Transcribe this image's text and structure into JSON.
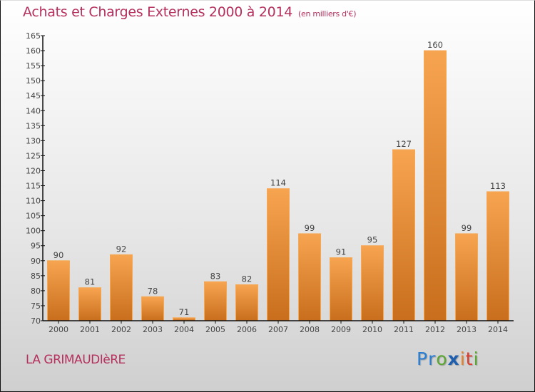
{
  "title": {
    "main": "Achats et Charges Externes 2000 à 2014",
    "unit": "(en milliers d'€)"
  },
  "city": "LA GRIMAUDIèRE",
  "logo": {
    "letters": [
      {
        "char": "P",
        "color": "#2a7fd4"
      },
      {
        "char": "r",
        "color": "#2a7fd4"
      },
      {
        "char": "o",
        "color": "#5aa832"
      },
      {
        "char": "x",
        "color": "#1f5fb0"
      },
      {
        "char": "i",
        "color": "#e8822a"
      },
      {
        "char": "t",
        "color": "#e03a2a"
      },
      {
        "char": "i",
        "color": "#5aa832"
      }
    ]
  },
  "colors": {
    "title": "#b5305e",
    "bar_top": "#f7a450",
    "bar_bottom": "#c86e1c",
    "axis": "#111111"
  },
  "chart_data": {
    "type": "bar",
    "title": "Achats et Charges Externes 2000 à 2014 (en milliers d'€)",
    "xlabel": "",
    "ylabel": "",
    "categories": [
      "2000",
      "2001",
      "2002",
      "2003",
      "2004",
      "2005",
      "2006",
      "2007",
      "2008",
      "2009",
      "2010",
      "2011",
      "2012",
      "2013",
      "2014"
    ],
    "values": [
      90,
      81,
      92,
      78,
      71,
      83,
      82,
      114,
      99,
      91,
      95,
      127,
      160,
      99,
      113
    ],
    "ylim": [
      70,
      165
    ],
    "yticks": [
      70,
      75,
      80,
      85,
      90,
      95,
      100,
      105,
      110,
      115,
      120,
      125,
      130,
      135,
      140,
      145,
      150,
      155,
      160,
      165
    ],
    "grid": false,
    "legend": "none"
  }
}
